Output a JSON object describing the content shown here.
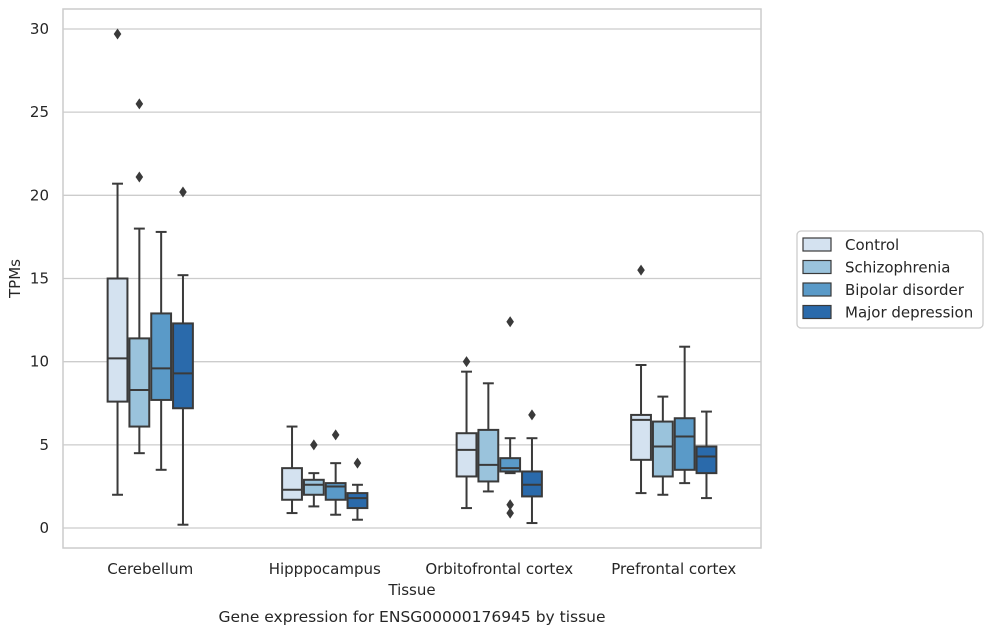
{
  "caption": "Gene expression for ENSG00000176945 by tissue",
  "chart_data": {
    "type": "boxplot",
    "xlabel": "Tissue",
    "ylabel": "TPMs",
    "ylim": [
      -1.2,
      31.2
    ],
    "yticks": [
      0,
      5,
      10,
      15,
      20,
      25,
      30
    ],
    "grid": "horizontal",
    "legend_placement": "right, outside plot",
    "categories": [
      "Cerebellum",
      "Hipppocampus",
      "Orbitofrontal cortex",
      "Prefrontal cortex"
    ],
    "series": [
      {
        "name": "Control",
        "color": "#d4e2f0",
        "boxes": [
          {
            "whislo": 2.0,
            "q1": 7.6,
            "med": 10.2,
            "q3": 15.0,
            "whishi": 20.7,
            "fliers": [
              29.7
            ]
          },
          {
            "whislo": 0.9,
            "q1": 1.7,
            "med": 2.3,
            "q3": 3.6,
            "whishi": 6.1,
            "fliers": []
          },
          {
            "whislo": 1.2,
            "q1": 3.1,
            "med": 4.7,
            "q3": 5.7,
            "whishi": 9.4,
            "fliers": [
              10.0
            ]
          },
          {
            "whislo": 2.1,
            "q1": 4.1,
            "med": 6.5,
            "q3": 6.8,
            "whishi": 9.8,
            "fliers": [
              15.5
            ]
          }
        ]
      },
      {
        "name": "Schizophrenia",
        "color": "#9ac3dc",
        "boxes": [
          {
            "whislo": 4.5,
            "q1": 6.1,
            "med": 8.3,
            "q3": 11.4,
            "whishi": 18.0,
            "fliers": [
              21.1,
              25.5
            ]
          },
          {
            "whislo": 1.3,
            "q1": 2.0,
            "med": 2.6,
            "q3": 2.9,
            "whishi": 3.3,
            "fliers": [
              5.0
            ]
          },
          {
            "whislo": 2.2,
            "q1": 2.8,
            "med": 3.8,
            "q3": 5.9,
            "whishi": 8.7,
            "fliers": []
          },
          {
            "whislo": 2.0,
            "q1": 3.1,
            "med": 4.9,
            "q3": 6.4,
            "whishi": 7.9,
            "fliers": []
          }
        ]
      },
      {
        "name": "Bipolar disorder",
        "color": "#5a9ac8",
        "boxes": [
          {
            "whislo": 3.5,
            "q1": 7.7,
            "med": 9.6,
            "q3": 12.9,
            "whishi": 17.8,
            "fliers": []
          },
          {
            "whislo": 0.8,
            "q1": 1.7,
            "med": 2.5,
            "q3": 2.7,
            "whishi": 3.9,
            "fliers": [
              5.6
            ]
          },
          {
            "whislo": 3.3,
            "q1": 3.4,
            "med": 3.6,
            "q3": 4.2,
            "whishi": 5.4,
            "fliers": [
              12.4,
              1.4,
              0.9
            ]
          },
          {
            "whislo": 2.7,
            "q1": 3.5,
            "med": 5.5,
            "q3": 6.6,
            "whishi": 10.9,
            "fliers": []
          }
        ]
      },
      {
        "name": "Major depression",
        "color": "#2a6aab",
        "boxes": [
          {
            "whislo": 0.2,
            "q1": 7.2,
            "med": 9.3,
            "q3": 12.3,
            "whishi": 15.2,
            "fliers": [
              20.2
            ]
          },
          {
            "whislo": 0.5,
            "q1": 1.2,
            "med": 1.8,
            "q3": 2.1,
            "whishi": 2.6,
            "fliers": [
              3.9
            ]
          },
          {
            "whislo": 0.3,
            "q1": 1.9,
            "med": 2.6,
            "q3": 3.4,
            "whishi": 5.4,
            "fliers": [
              6.8
            ]
          },
          {
            "whislo": 1.8,
            "q1": 3.3,
            "med": 4.3,
            "q3": 4.9,
            "whishi": 7.0,
            "fliers": []
          }
        ]
      }
    ]
  }
}
